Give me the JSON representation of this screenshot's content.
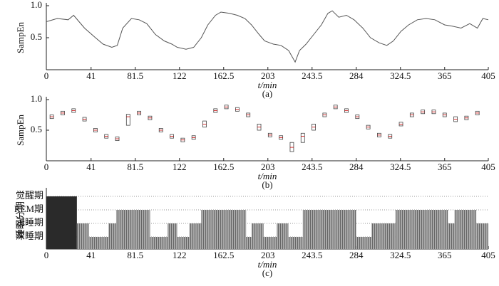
{
  "chart_data": [
    {
      "type": "line",
      "ylabel": "SampEn",
      "xlabel": "t/min",
      "caption": "(a)",
      "color": "#555555",
      "xlim": [
        0,
        405
      ],
      "ylim": [
        0,
        1
      ],
      "xticks": [
        0,
        41,
        81.5,
        122,
        162.5,
        203,
        243.5,
        284,
        324.5,
        365,
        405
      ],
      "yticks": [
        0.5,
        {
          "value": 1,
          "label": "1.0"
        }
      ],
      "x": [
        0,
        10,
        20,
        25,
        30,
        35,
        45,
        52,
        60,
        65,
        70,
        78,
        85,
        92,
        100,
        108,
        115,
        120,
        128,
        135,
        142,
        148,
        155,
        160,
        168,
        175,
        182,
        188,
        195,
        200,
        208,
        215,
        222,
        228,
        232,
        238,
        245,
        252,
        258,
        262,
        268,
        275,
        282,
        290,
        297,
        305,
        312,
        318,
        325,
        332,
        340,
        348,
        356,
        365,
        372,
        380,
        388,
        395,
        400,
        405
      ],
      "values": [
        0.75,
        0.8,
        0.78,
        0.85,
        0.75,
        0.65,
        0.5,
        0.4,
        0.35,
        0.38,
        0.65,
        0.8,
        0.78,
        0.72,
        0.55,
        0.45,
        0.4,
        0.35,
        0.32,
        0.35,
        0.5,
        0.7,
        0.85,
        0.9,
        0.88,
        0.85,
        0.8,
        0.7,
        0.55,
        0.45,
        0.4,
        0.38,
        0.3,
        0.12,
        0.3,
        0.4,
        0.55,
        0.7,
        0.88,
        0.92,
        0.82,
        0.85,
        0.78,
        0.65,
        0.5,
        0.42,
        0.38,
        0.45,
        0.6,
        0.7,
        0.78,
        0.8,
        0.78,
        0.7,
        0.68,
        0.65,
        0.72,
        0.65,
        0.8,
        0.78
      ]
    },
    {
      "type": "box",
      "ylabel": "SampEn",
      "xlabel": "t/min",
      "caption": "(b)",
      "color": "#444444",
      "xlim": [
        0,
        405
      ],
      "ylim": [
        0,
        1
      ],
      "xticks": [
        0,
        41,
        81.5,
        122,
        162.5,
        203,
        243.5,
        284,
        324.5,
        365,
        405
      ],
      "yticks": [
        0.5,
        {
          "value": 1,
          "label": "1.0"
        }
      ],
      "x": [
        5,
        15,
        25,
        35,
        45,
        55,
        65,
        75,
        85,
        95,
        105,
        115,
        125,
        135,
        145,
        155,
        165,
        175,
        185,
        195,
        205,
        215,
        225,
        235,
        245,
        255,
        265,
        275,
        285,
        295,
        305,
        315,
        325,
        335,
        345,
        355,
        365,
        375,
        385,
        395
      ],
      "q1": [
        0.69,
        0.75,
        0.79,
        0.65,
        0.47,
        0.37,
        0.33,
        0.58,
        0.75,
        0.67,
        0.47,
        0.37,
        0.31,
        0.35,
        0.55,
        0.79,
        0.85,
        0.81,
        0.72,
        0.5,
        0.39,
        0.35,
        0.15,
        0.3,
        0.5,
        0.72,
        0.85,
        0.79,
        0.69,
        0.52,
        0.39,
        0.37,
        0.57,
        0.72,
        0.77,
        0.77,
        0.72,
        0.64,
        0.67,
        0.75
      ],
      "median": [
        0.72,
        0.78,
        0.82,
        0.68,
        0.5,
        0.4,
        0.36,
        0.72,
        0.78,
        0.7,
        0.5,
        0.4,
        0.34,
        0.38,
        0.6,
        0.82,
        0.88,
        0.84,
        0.75,
        0.55,
        0.42,
        0.38,
        0.22,
        0.4,
        0.55,
        0.75,
        0.88,
        0.82,
        0.72,
        0.55,
        0.42,
        0.4,
        0.6,
        0.75,
        0.8,
        0.8,
        0.75,
        0.68,
        0.7,
        0.78
      ],
      "q3": [
        0.75,
        0.81,
        0.85,
        0.71,
        0.53,
        0.43,
        0.39,
        0.76,
        0.81,
        0.73,
        0.53,
        0.43,
        0.37,
        0.41,
        0.65,
        0.85,
        0.91,
        0.87,
        0.78,
        0.6,
        0.45,
        0.41,
        0.3,
        0.45,
        0.6,
        0.78,
        0.91,
        0.85,
        0.75,
        0.58,
        0.45,
        0.43,
        0.63,
        0.78,
        0.83,
        0.83,
        0.78,
        0.72,
        0.73,
        0.81
      ]
    },
    {
      "type": "hypnogram",
      "ylabel": "睡眠分期",
      "xlabel": "t/min",
      "caption": "(c)",
      "color": "#9a9a9a",
      "wake_color": "#2a2a2a",
      "xlim": [
        0,
        405
      ],
      "xticks": [
        0,
        41,
        81.5,
        122,
        162.5,
        203,
        243.5,
        284,
        324.5,
        365,
        405
      ],
      "categories": [
        "觉醒期",
        "REM期",
        "浅睡期",
        "深睡期"
      ],
      "edges": [
        0,
        28,
        39,
        57,
        64,
        95,
        111,
        120,
        131,
        142,
        183,
        188,
        199,
        211,
        222,
        235,
        284,
        298,
        320,
        368,
        374,
        394,
        405
      ],
      "stages": [
        "觉醒期",
        "浅睡期",
        "深睡期",
        "浅睡期",
        "REM期",
        "深睡期",
        "浅睡期",
        "深睡期",
        "浅睡期",
        "REM期",
        "深睡期",
        "浅睡期",
        "深睡期",
        "浅睡期",
        "深睡期",
        "REM期",
        "深睡期",
        "浅睡期",
        "REM期",
        "浅睡期",
        "REM期",
        "浅睡期"
      ]
    }
  ]
}
